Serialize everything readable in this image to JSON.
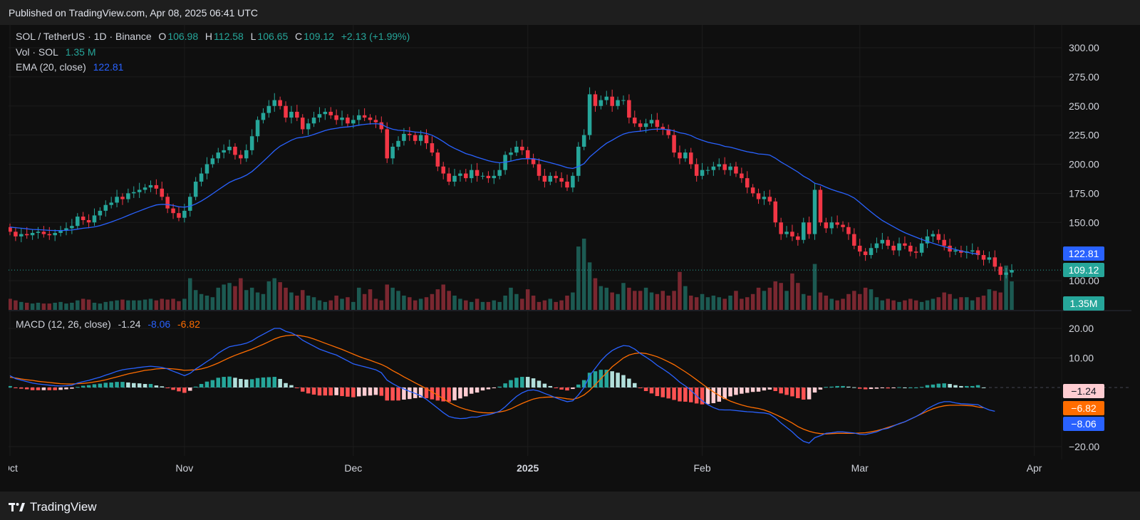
{
  "published": "Published on TradingView.com, Apr 08, 2025 06:41 UTC",
  "brand": "TradingView",
  "legend": {
    "symbol": "SOL / TetherUS · 1D · Binance",
    "o_label": "O",
    "o": "106.98",
    "h_label": "H",
    "h": "112.58",
    "l_label": "L",
    "l": "106.65",
    "c_label": "C",
    "c": "109.12",
    "change": "+2.13 (+1.99%)",
    "vol_label": "Vol · SOL",
    "vol": "1.35 M",
    "ema_label": "EMA (20, close)",
    "ema": "122.81",
    "macd_label": "MACD (12, 26, close)",
    "macd_hist": "-1.24",
    "macd_line": "-8.06",
    "macd_signal": "-6.82"
  },
  "price_tags": {
    "ema": "122.81",
    "last": "109.12",
    "volume": "1.35M",
    "macd_hist": "−1.24",
    "macd_signal": "−6.82",
    "macd_line": "−8.06"
  },
  "colors": {
    "up": "#26a69a",
    "down": "#f23645",
    "ema": "#2962ff",
    "macd": "#2962ff",
    "signal": "#ff6d00",
    "hist_up_strong": "#26a69a",
    "hist_up_weak": "#b2dfdb",
    "hist_down_strong": "#ff5252",
    "hist_down_weak": "#ffcdd2"
  },
  "chart_data": {
    "type": "candlestick",
    "price_axis": {
      "ticks": [
        "300.00",
        "275.00",
        "250.00",
        "225.00",
        "200.00",
        "175.00",
        "150.00",
        "100.00"
      ],
      "tick_values": [
        300,
        275,
        250,
        225,
        200,
        175,
        150,
        100
      ]
    },
    "macd_axis": {
      "ticks": [
        "20.00",
        "10.00",
        "−20.00"
      ],
      "tick_values": [
        20,
        10,
        -20
      ]
    },
    "time_axis": {
      "labels": [
        "Oct",
        "Nov",
        "Dec",
        "2025",
        "Feb",
        "Mar",
        "Apr"
      ],
      "positions_days": [
        0,
        31,
        61,
        92,
        123,
        151,
        182
      ]
    },
    "close": [
      142,
      138,
      140,
      139,
      141,
      142,
      140,
      139,
      141,
      143,
      145,
      147,
      155,
      152,
      150,
      156,
      160,
      165,
      167,
      172,
      170,
      175,
      176,
      178,
      180,
      182,
      179,
      172,
      162,
      158,
      154,
      160,
      172,
      185,
      192,
      200,
      205,
      210,
      212,
      215,
      208,
      205,
      212,
      224,
      238,
      244,
      250,
      255,
      250,
      240,
      245,
      240,
      230,
      235,
      240,
      243,
      245,
      242,
      238,
      240,
      235,
      238,
      242,
      240,
      238,
      236,
      230,
      205,
      215,
      220,
      226,
      225,
      220,
      225,
      218,
      210,
      198,
      192,
      185,
      190,
      192,
      188,
      195,
      190,
      190,
      188,
      190,
      195,
      208,
      210,
      215,
      212,
      205,
      200,
      190,
      185,
      190,
      188,
      185,
      180,
      190,
      215,
      225,
      260,
      250,
      255,
      258,
      250,
      255,
      255,
      240,
      235,
      232,
      235,
      238,
      232,
      230,
      225,
      210,
      205,
      210,
      200,
      190,
      195,
      195,
      198,
      200,
      195,
      198,
      192,
      188,
      180,
      175,
      170,
      172,
      168,
      150,
      140,
      142,
      138,
      135,
      150,
      140,
      178,
      150,
      145,
      150,
      148,
      146,
      140,
      130,
      125,
      122,
      128,
      132,
      135,
      130,
      126,
      132,
      130,
      125,
      124,
      132,
      138,
      140,
      135,
      130,
      125,
      126,
      124,
      125,
      126,
      122,
      118,
      120,
      112,
      105,
      107,
      109.12
    ],
    "open": [
      146,
      142,
      138,
      140,
      139,
      141,
      142,
      140,
      139,
      141,
      143,
      145,
      147,
      155,
      152,
      150,
      156,
      160,
      165,
      167,
      172,
      170,
      175,
      176,
      178,
      180,
      182,
      179,
      172,
      162,
      158,
      154,
      160,
      172,
      185,
      192,
      200,
      205,
      210,
      212,
      215,
      208,
      205,
      212,
      224,
      238,
      244,
      250,
      255,
      250,
      240,
      245,
      240,
      230,
      235,
      240,
      243,
      245,
      242,
      238,
      240,
      235,
      238,
      242,
      240,
      238,
      236,
      230,
      205,
      215,
      220,
      226,
      225,
      220,
      225,
      218,
      210,
      198,
      192,
      185,
      190,
      192,
      188,
      195,
      190,
      190,
      188,
      190,
      195,
      208,
      210,
      215,
      212,
      205,
      200,
      190,
      185,
      190,
      188,
      185,
      180,
      190,
      215,
      225,
      260,
      250,
      255,
      258,
      250,
      255,
      255,
      240,
      235,
      232,
      235,
      238,
      232,
      230,
      225,
      210,
      205,
      210,
      200,
      190,
      195,
      195,
      198,
      200,
      195,
      198,
      192,
      188,
      180,
      175,
      170,
      172,
      168,
      150,
      140,
      142,
      138,
      135,
      150,
      140,
      178,
      150,
      145,
      150,
      148,
      146,
      140,
      130,
      125,
      122,
      128,
      132,
      135,
      130,
      126,
      132,
      130,
      125,
      124,
      132,
      138,
      140,
      135,
      130,
      125,
      126,
      124,
      125,
      126,
      122,
      118,
      120,
      112,
      105,
      106.98
    ],
    "ema20": [
      146,
      145.5,
      145,
      144.5,
      144,
      143.8,
      143.5,
      143.2,
      143,
      143,
      143.2,
      143.5,
      144.2,
      145,
      145.5,
      146.2,
      147.3,
      148.8,
      150.4,
      152.2,
      154,
      156,
      158,
      159.8,
      161.7,
      163.5,
      165,
      165.5,
      165.3,
      164.6,
      163.4,
      163.1,
      163.9,
      165.9,
      168.4,
      171.4,
      174.6,
      178,
      181.2,
      184.4,
      186.6,
      188.3,
      190.6,
      193.7,
      197.9,
      202.3,
      206.9,
      211.6,
      215.4,
      218,
      220.6,
      222.5,
      223.1,
      224,
      225.5,
      227.2,
      228.9,
      230.1,
      230.8,
      231.7,
      232,
      232.6,
      233.5,
      234.2,
      234.6,
      234.8,
      234.4,
      231.6,
      230,
      229.1,
      228.8,
      228.4,
      227.6,
      227.3,
      226.4,
      224.9,
      222.3,
      219.4,
      216.1,
      213.6,
      211.4,
      209.1,
      207.7,
      206,
      204.5,
      203,
      201.9,
      201.2,
      201.8,
      202.6,
      203.8,
      204.7,
      204.7,
      204.7,
      203.8,
      202.5,
      201.3,
      200,
      198.6,
      197,
      196.3,
      198,
      200.5,
      206.2,
      210.3,
      214.3,
      218,
      220.6,
      223.4,
      225.9,
      227.2,
      227.9,
      228.3,
      229,
      229.9,
      230.1,
      230.1,
      229.6,
      228.6,
      227,
      226.2,
      224.6,
      222.2,
      220.5,
      218.9,
      217.8,
      216.9,
      215.3,
      214.6,
      213.3,
      211.9,
      210.7,
      209.9,
      208.8,
      208.5,
      207.8,
      205.2,
      201.9,
      199.1,
      196.2,
      193.3,
      189.7,
      187.1,
      183.7,
      182.3,
      180.2,
      178.3,
      176.7,
      175.2,
      173.5,
      171,
      167.1,
      163,
      159,
      155.2,
      151.7,
      149,
      146.3,
      143.6,
      141.2,
      139.2,
      137.3,
      135.4,
      133.7,
      132.1,
      130.6,
      129.2,
      127.9,
      126.7,
      125.5,
      124.5,
      123.4,
      122.81
    ],
    "volume": [
      14,
      12,
      10,
      9,
      8,
      9,
      8,
      8,
      9,
      10,
      8,
      9,
      12,
      14,
      13,
      9,
      8,
      10,
      11,
      12,
      13,
      12,
      12,
      12,
      13,
      14,
      12,
      14,
      13,
      14,
      11,
      14,
      40,
      25,
      20,
      18,
      16,
      28,
      32,
      34,
      30,
      40,
      25,
      28,
      22,
      20,
      36,
      40,
      35,
      28,
      22,
      18,
      25,
      18,
      16,
      12,
      10,
      12,
      18,
      14,
      16,
      10,
      28,
      20,
      26,
      14,
      12,
      32,
      28,
      24,
      18,
      16,
      12,
      14,
      16,
      20,
      26,
      32,
      24,
      18,
      14,
      12,
      10,
      14,
      10,
      10,
      12,
      10,
      18,
      28,
      20,
      14,
      26,
      18,
      10,
      12,
      14,
      10,
      12,
      18,
      22,
      80,
      90,
      60,
      40,
      30,
      28,
      22,
      20,
      34,
      28,
      24,
      24,
      28,
      22,
      20,
      24,
      18,
      24,
      48,
      30,
      18,
      16,
      20,
      16,
      18,
      16,
      14,
      18,
      24,
      14,
      16,
      20,
      28,
      24,
      28,
      36,
      34,
      24,
      46,
      34,
      20,
      18,
      58,
      22,
      18,
      14,
      12,
      14,
      20,
      24,
      20,
      28,
      26,
      16,
      12,
      14,
      12,
      10,
      12,
      14,
      12,
      10,
      12,
      14,
      16,
      22,
      20,
      14,
      16,
      16,
      12,
      16,
      18,
      26,
      24,
      22,
      56,
      36
    ],
    "macd": [
      4,
      3,
      2.5,
      2,
      1.5,
      1.2,
      1,
      0.8,
      0.6,
      0.5,
      0.6,
      0.8,
      1.5,
      2,
      2.4,
      3,
      3.5,
      4.2,
      4.8,
      5.5,
      6,
      6.3,
      6.5,
      6.8,
      7,
      7.2,
      7,
      6.8,
      6.3,
      5.5,
      4.8,
      4,
      4.8,
      6.3,
      7.5,
      8.8,
      10,
      11.6,
      12.8,
      13.8,
      14.2,
      14.5,
      15,
      15.8,
      17,
      18,
      19,
      20,
      20,
      19,
      18.5,
      17.5,
      16,
      15,
      14,
      13,
      12.3,
      11.6,
      11,
      10,
      9,
      8,
      7.5,
      7,
      6.5,
      6,
      5,
      2.5,
      1.3,
      0.3,
      -0.5,
      -1.3,
      -2,
      -2.8,
      -4,
      -5.5,
      -7,
      -8.5,
      -9.8,
      -10.3,
      -10.5,
      -10.4,
      -10,
      -10,
      -9.5,
      -9.2,
      -8.7,
      -8,
      -6.5,
      -4.7,
      -3,
      -1.8,
      -1,
      -0.8,
      -1.2,
      -2,
      -2.7,
      -3.5,
      -4.2,
      -4.8,
      -4.5,
      -2.5,
      0,
      4,
      6.5,
      9,
      11,
      12.5,
      13.5,
      14.2,
      14,
      13,
      11.5,
      10.3,
      9,
      7.5,
      6.3,
      5,
      3.5,
      1.8,
      0.5,
      -1,
      -2.8,
      -4.5,
      -5.8,
      -6.8,
      -7.5,
      -7.6,
      -7.6,
      -7.8,
      -8,
      -8.2,
      -8.3,
      -8.5,
      -8.6,
      -9,
      -10.3,
      -12,
      -13.5,
      -15,
      -16.8,
      -18.2,
      -18.8,
      -17,
      -16.3,
      -15.5,
      -15.3,
      -15,
      -15,
      -15.2,
      -15.4,
      -15.8,
      -15.9,
      -15.5,
      -15,
      -14.2,
      -13.8,
      -13,
      -12.2,
      -11.6,
      -10.7,
      -9.8,
      -8.7,
      -7.2,
      -6.2,
      -5.3,
      -4.8,
      -4.8,
      -5.2,
      -5.5,
      -5.6,
      -5.7,
      -5.8,
      -6.8,
      -7.6,
      -8.06
    ],
    "signal": [
      3.5,
      3.2,
      2.9,
      2.6,
      2.4,
      2.1,
      1.9,
      1.7,
      1.5,
      1.3,
      1.2,
      1.2,
      1.3,
      1.4,
      1.6,
      1.9,
      2.2,
      2.6,
      3.1,
      3.6,
      4.1,
      4.6,
      5,
      5.4,
      5.8,
      6,
      6.3,
      6.4,
      6.4,
      6.3,
      6.1,
      5.8,
      5.9,
      6,
      6.3,
      6.8,
      7.5,
      8.3,
      9.2,
      10.1,
      10.9,
      11.6,
      12.3,
      13,
      13.8,
      14.6,
      15.5,
      16.4,
      17.1,
      17.5,
      17.7,
      17.7,
      17.4,
      17,
      16.4,
      15.7,
      15,
      14.3,
      13.6,
      12.9,
      12.1,
      11.3,
      10.5,
      9.8,
      9.2,
      8.5,
      7.8,
      6.9,
      5.7,
      4.7,
      3.6,
      2.6,
      1.6,
      0.6,
      -0.4,
      -1.5,
      -2.6,
      -3.8,
      -5,
      -6,
      -6.8,
      -7.4,
      -7.9,
      -8.3,
      -8.5,
      -8.6,
      -8.5,
      -8.3,
      -7.9,
      -7.2,
      -6.3,
      -5.4,
      -4.6,
      -3.9,
      -3.5,
      -3.3,
      -3.2,
      -3.3,
      -3.5,
      -3.8,
      -4,
      -3.5,
      -2.5,
      -1,
      1,
      3,
      5,
      7,
      8.5,
      10,
      11,
      11.5,
      11.7,
      11.5,
      11,
      10.4,
      9.6,
      8.7,
      7.7,
      6.5,
      5.3,
      4,
      2.6,
      1.2,
      -0.2,
      -1.5,
      -2.7,
      -3.7,
      -4.6,
      -5.3,
      -5.9,
      -6.4,
      -6.8,
      -7.1,
      -7.6,
      -8.3,
      -9.1,
      -10,
      -11,
      -12,
      -13.2,
      -14.1,
      -14.8,
      -15.3,
      -15.6,
      -15.7,
      -15.6,
      -15.5,
      -15.5,
      -15.5,
      -15.5,
      -15.4,
      -15.3,
      -15,
      -14.6,
      -14.1,
      -13.5,
      -12.9,
      -12.3,
      -11.6,
      -10.7,
      -9.8,
      -8.9,
      -8,
      -7.2,
      -6.6,
      -6.2,
      -6,
      -6,
      -6,
      -6.1,
      -6.2,
      -6.6,
      -6.82
    ]
  }
}
